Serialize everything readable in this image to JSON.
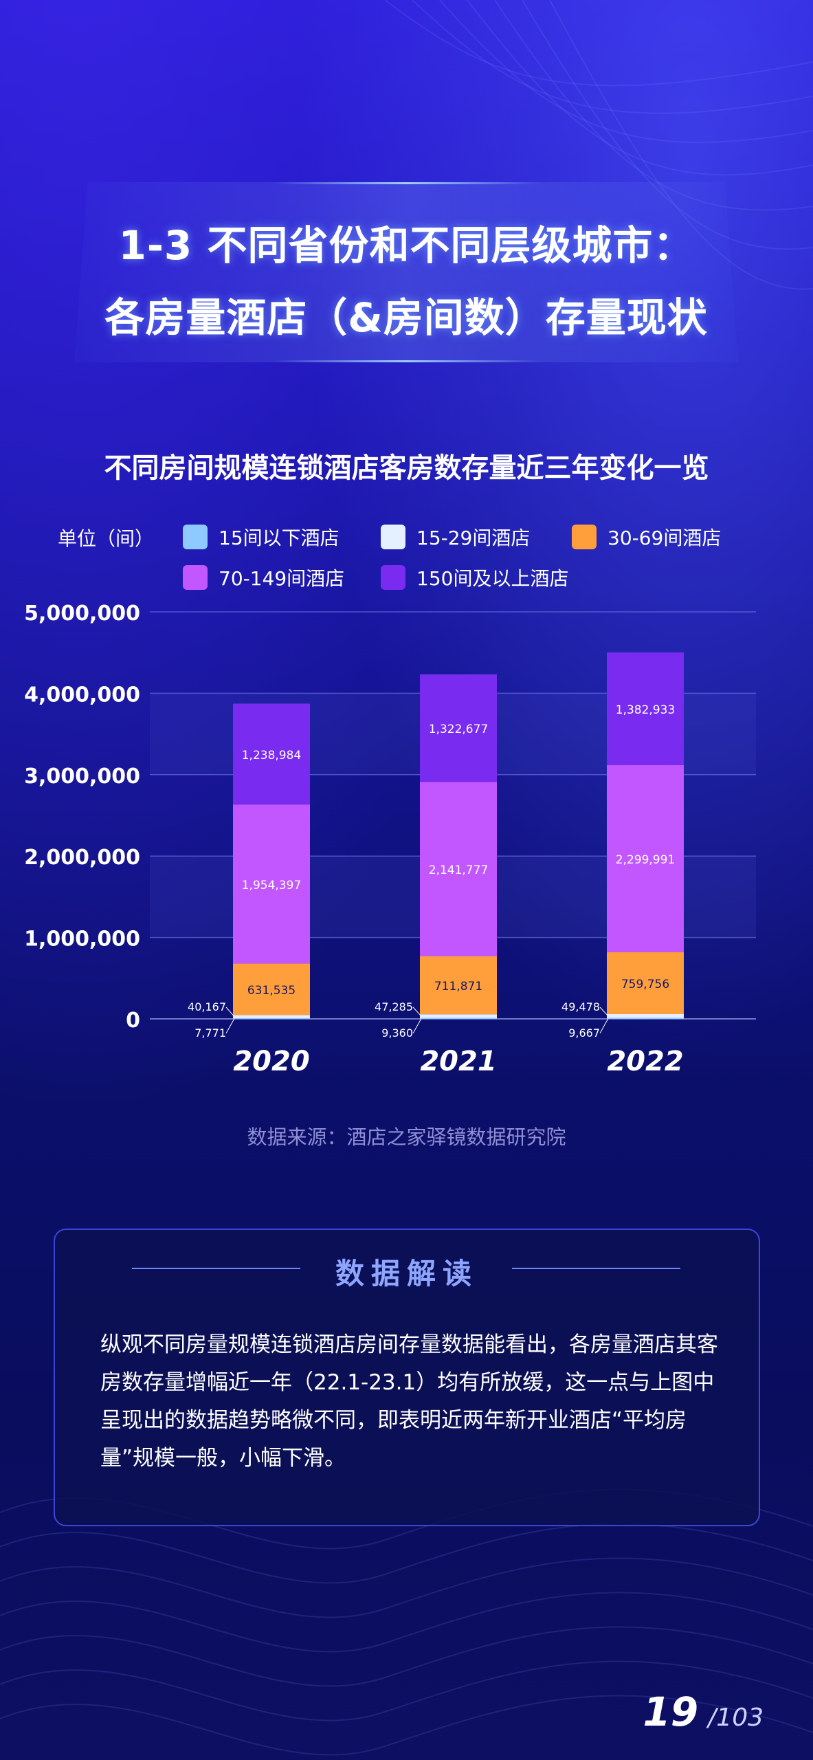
{
  "title": {
    "line1": "1-3 不同省份和不同层级城市：",
    "line2": "各房量酒店（&房间数）存量现状"
  },
  "legend": {
    "unit": "单位（间）"
  },
  "chart_data": {
    "type": "bar",
    "stacked": true,
    "title": "不同房间规模连锁酒店客房数存量近三年变化一览",
    "categories": [
      "2020",
      "2021",
      "2022"
    ],
    "series": [
      {
        "name": "15间以下酒店",
        "color": "#8ec9ff",
        "values": [
          7771,
          9360,
          9667
        ]
      },
      {
        "name": "15-29间酒店",
        "color": "#e4efff",
        "values": [
          40167,
          47285,
          49478
        ]
      },
      {
        "name": "30-69间酒店",
        "color": "#ff9f3c",
        "values": [
          631535,
          711871,
          759756
        ]
      },
      {
        "name": "70-149间酒店",
        "color": "#c256ff",
        "values": [
          1954397,
          2141777,
          2299991
        ]
      },
      {
        "name": "150间及以上酒店",
        "color": "#7a2bf0",
        "values": [
          1238984,
          1322677,
          1382933
        ]
      }
    ],
    "value_labels": {
      "15间以下酒店": [
        "7,771",
        "9,360",
        "9,667"
      ],
      "15-29间酒店": [
        "40,167",
        "47,285",
        "49,478"
      ],
      "30-69间酒店": [
        "631,535",
        "711,871",
        "759,756"
      ],
      "70-149间酒店": [
        "1,954,397",
        "2,141,777",
        "2,299,991"
      ],
      "150间及以上酒店": [
        "1,238,984",
        "1,322,677",
        "1,382,933"
      ]
    },
    "ylim": [
      0,
      5000000
    ],
    "yticks": [
      0,
      1000000,
      2000000,
      3000000,
      4000000,
      5000000
    ],
    "ytick_labels": [
      "0",
      "1,000,000",
      "2,000,000",
      "3,000,000",
      "4,000,000",
      "5,000,000"
    ],
    "grid": true,
    "legend_position": "top"
  },
  "source": "数据来源：酒店之家驿镜数据研究院",
  "interpretation": {
    "heading": "数据解读",
    "body": "纵观不同房量规模连锁酒店房间存量数据能看出，各房量酒店其客房数存量增幅近一年（22.1-23.1）均有所放缓，这一点与上图中呈现出的数据趋势略微不同，即表明近两年新开业酒店“平均房量”规模一般，小幅下滑。"
  },
  "page": {
    "current": "19",
    "total": "/103"
  }
}
